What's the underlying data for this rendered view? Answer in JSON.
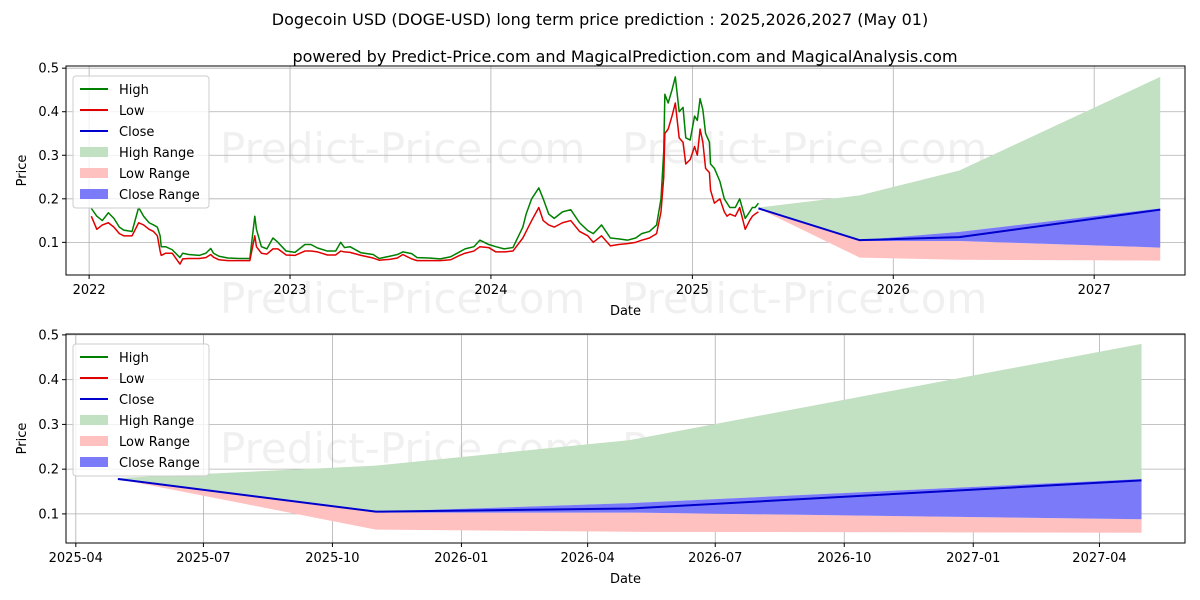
{
  "title": "Dogecoin USD (DOGE-USD) long term price prediction : 2025,2026,2027 (May 01)",
  "subtitle": "powered by Predict-Price.com and MagicalPrediction.com and MagicalAnalysis.com",
  "watermark": "Predict-Price.com",
  "colors": {
    "high": "#008000",
    "low": "#e00000",
    "close": "#0000cc",
    "high_range": "#c2e0c2",
    "low_range": "#ffc0c0",
    "close_range": "#7b7bfa"
  },
  "legend": {
    "placement": "upper-left",
    "items": [
      {
        "label": "High",
        "kind": "line",
        "color_key": "high"
      },
      {
        "label": "Low",
        "kind": "line",
        "color_key": "low"
      },
      {
        "label": "Close",
        "kind": "line",
        "color_key": "close"
      },
      {
        "label": "High Range",
        "kind": "patch",
        "color_key": "high_range"
      },
      {
        "label": "Low Range",
        "kind": "patch",
        "color_key": "low_range"
      },
      {
        "label": "Close Range",
        "kind": "patch",
        "color_key": "close_range"
      }
    ]
  },
  "chart_data": [
    {
      "type": "line",
      "xlabel": "Date",
      "ylabel": "Price",
      "xlim": [
        "2021-11-20",
        "2027-06-15"
      ],
      "ylim": [
        0.025,
        0.505
      ],
      "grid": true,
      "x_ticks": [
        "2022-01-01",
        "2023-01-01",
        "2024-01-01",
        "2025-01-01",
        "2026-01-01",
        "2027-01-01"
      ],
      "x_tick_labels": [
        "2022",
        "2023",
        "2024",
        "2025",
        "2026",
        "2027"
      ],
      "y_ticks": [
        0.1,
        0.2,
        0.3,
        0.4,
        0.5
      ],
      "y_tick_labels": [
        "0.1",
        "0.2",
        "0.3",
        "0.4",
        "0.5"
      ],
      "history": {
        "dates": [
          "2022-01-05",
          "2022-01-15",
          "2022-01-25",
          "2022-02-05",
          "2022-02-15",
          "2022-02-25",
          "2022-03-05",
          "2022-03-20",
          "2022-04-01",
          "2022-04-10",
          "2022-04-20",
          "2022-04-28",
          "2022-05-05",
          "2022-05-10",
          "2022-05-12",
          "2022-05-20",
          "2022-06-01",
          "2022-06-15",
          "2022-06-20",
          "2022-07-01",
          "2022-07-20",
          "2022-08-01",
          "2022-08-10",
          "2022-08-15",
          "2022-08-25",
          "2022-09-10",
          "2022-10-01",
          "2022-10-20",
          "2022-10-29",
          "2022-11-01",
          "2022-11-10",
          "2022-11-20",
          "2022-12-01",
          "2022-12-10",
          "2022-12-25",
          "2023-01-10",
          "2023-01-28",
          "2023-02-08",
          "2023-02-20",
          "2023-03-10",
          "2023-03-25",
          "2023-04-03",
          "2023-04-10",
          "2023-04-20",
          "2023-05-10",
          "2023-06-01",
          "2023-06-12",
          "2023-07-01",
          "2023-07-15",
          "2023-07-25",
          "2023-08-10",
          "2023-08-20",
          "2023-09-10",
          "2023-10-01",
          "2023-10-20",
          "2023-11-05",
          "2023-11-15",
          "2023-12-01",
          "2023-12-12",
          "2023-12-28",
          "2024-01-10",
          "2024-01-25",
          "2024-02-10",
          "2024-02-28",
          "2024-03-05",
          "2024-03-15",
          "2024-03-28",
          "2024-04-05",
          "2024-04-15",
          "2024-04-25",
          "2024-05-10",
          "2024-05-25",
          "2024-06-10",
          "2024-06-25",
          "2024-07-05",
          "2024-07-20",
          "2024-08-05",
          "2024-08-20",
          "2024-09-05",
          "2024-09-20",
          "2024-10-01",
          "2024-10-15",
          "2024-10-28",
          "2024-11-05",
          "2024-11-10",
          "2024-11-12",
          "2024-11-18",
          "2024-11-25",
          "2024-12-01",
          "2024-12-08",
          "2024-12-15",
          "2024-12-20",
          "2024-12-28",
          "2025-01-05",
          "2025-01-10",
          "2025-01-15",
          "2025-01-20",
          "2025-01-25",
          "2025-02-01",
          "2025-02-03",
          "2025-02-10",
          "2025-02-20",
          "2025-02-28",
          "2025-03-05",
          "2025-03-10",
          "2025-03-20",
          "2025-03-28",
          "2025-04-07",
          "2025-04-15",
          "2025-04-20",
          "2025-04-25",
          "2025-05-01"
        ],
        "high": [
          0.178,
          0.16,
          0.15,
          0.168,
          0.155,
          0.135,
          0.128,
          0.125,
          0.18,
          0.16,
          0.145,
          0.14,
          0.135,
          0.115,
          0.09,
          0.09,
          0.083,
          0.065,
          0.075,
          0.072,
          0.07,
          0.075,
          0.086,
          0.075,
          0.068,
          0.064,
          0.063,
          0.063,
          0.16,
          0.13,
          0.09,
          0.085,
          0.11,
          0.1,
          0.08,
          0.077,
          0.095,
          0.095,
          0.087,
          0.08,
          0.08,
          0.1,
          0.088,
          0.09,
          0.076,
          0.072,
          0.063,
          0.068,
          0.072,
          0.078,
          0.074,
          0.065,
          0.064,
          0.062,
          0.067,
          0.078,
          0.085,
          0.09,
          0.105,
          0.095,
          0.09,
          0.085,
          0.088,
          0.135,
          0.165,
          0.2,
          0.225,
          0.2,
          0.165,
          0.155,
          0.17,
          0.175,
          0.145,
          0.127,
          0.12,
          0.14,
          0.11,
          0.108,
          0.105,
          0.11,
          0.12,
          0.125,
          0.14,
          0.2,
          0.31,
          0.44,
          0.42,
          0.45,
          0.48,
          0.4,
          0.41,
          0.34,
          0.335,
          0.39,
          0.38,
          0.43,
          0.405,
          0.35,
          0.33,
          0.28,
          0.27,
          0.24,
          0.2,
          0.19,
          0.18,
          0.18,
          0.2,
          0.155,
          0.17,
          0.18,
          0.18,
          0.19
        ],
        "low": [
          0.16,
          0.13,
          0.14,
          0.145,
          0.135,
          0.12,
          0.115,
          0.115,
          0.145,
          0.14,
          0.13,
          0.125,
          0.115,
          0.08,
          0.07,
          0.075,
          0.075,
          0.05,
          0.062,
          0.063,
          0.063,
          0.065,
          0.072,
          0.066,
          0.06,
          0.058,
          0.058,
          0.058,
          0.115,
          0.09,
          0.075,
          0.073,
          0.085,
          0.085,
          0.071,
          0.07,
          0.08,
          0.08,
          0.078,
          0.071,
          0.071,
          0.08,
          0.078,
          0.077,
          0.07,
          0.064,
          0.059,
          0.061,
          0.064,
          0.072,
          0.062,
          0.058,
          0.058,
          0.058,
          0.06,
          0.07,
          0.075,
          0.08,
          0.09,
          0.088,
          0.078,
          0.078,
          0.08,
          0.11,
          0.125,
          0.15,
          0.18,
          0.15,
          0.14,
          0.135,
          0.145,
          0.15,
          0.125,
          0.115,
          0.1,
          0.115,
          0.092,
          0.095,
          0.097,
          0.1,
          0.105,
          0.11,
          0.12,
          0.17,
          0.25,
          0.35,
          0.36,
          0.39,
          0.42,
          0.34,
          0.33,
          0.28,
          0.29,
          0.32,
          0.3,
          0.36,
          0.33,
          0.27,
          0.26,
          0.22,
          0.19,
          0.2,
          0.17,
          0.16,
          0.165,
          0.16,
          0.18,
          0.13,
          0.15,
          0.16,
          0.165,
          0.17
        ]
      },
      "forecast": {
        "dates": [
          "2025-05-01",
          "2025-11-01",
          "2026-05-01",
          "2027-05-01"
        ],
        "close": [
          0.178,
          0.105,
          0.112,
          0.175
        ],
        "close_range_upper": [
          0.18,
          0.105,
          0.124,
          0.178
        ],
        "close_range_lower": [
          0.178,
          0.103,
          0.103,
          0.088
        ],
        "high_range_upper": [
          0.18,
          0.208,
          0.265,
          0.48
        ],
        "low_range_lower": [
          0.178,
          0.065,
          0.06,
          0.058
        ]
      }
    },
    {
      "type": "line",
      "xlabel": "Date",
      "ylabel": "Price",
      "xlim": [
        "2025-03-25",
        "2027-06-01"
      ],
      "ylim": [
        0.035,
        0.502
      ],
      "grid": true,
      "x_ticks": [
        "2025-04-01",
        "2025-07-01",
        "2025-10-01",
        "2026-01-01",
        "2026-04-01",
        "2026-07-01",
        "2026-10-01",
        "2027-01-01",
        "2027-04-01"
      ],
      "x_tick_labels": [
        "2025-04",
        "2025-07",
        "2025-10",
        "2026-01",
        "2026-04",
        "2026-07",
        "2026-10",
        "2027-01",
        "2027-04"
      ],
      "y_ticks": [
        0.1,
        0.2,
        0.3,
        0.4,
        0.5
      ],
      "y_tick_labels": [
        "0.1",
        "0.2",
        "0.3",
        "0.4",
        "0.5"
      ],
      "forecast": {
        "dates": [
          "2025-05-01",
          "2025-11-01",
          "2026-05-01",
          "2027-05-01"
        ],
        "close": [
          0.178,
          0.105,
          0.112,
          0.175
        ],
        "close_range_upper": [
          0.18,
          0.105,
          0.124,
          0.178
        ],
        "close_range_lower": [
          0.178,
          0.103,
          0.103,
          0.088
        ],
        "high_range_upper": [
          0.18,
          0.208,
          0.265,
          0.48
        ],
        "low_range_lower": [
          0.178,
          0.065,
          0.06,
          0.058
        ]
      }
    }
  ]
}
